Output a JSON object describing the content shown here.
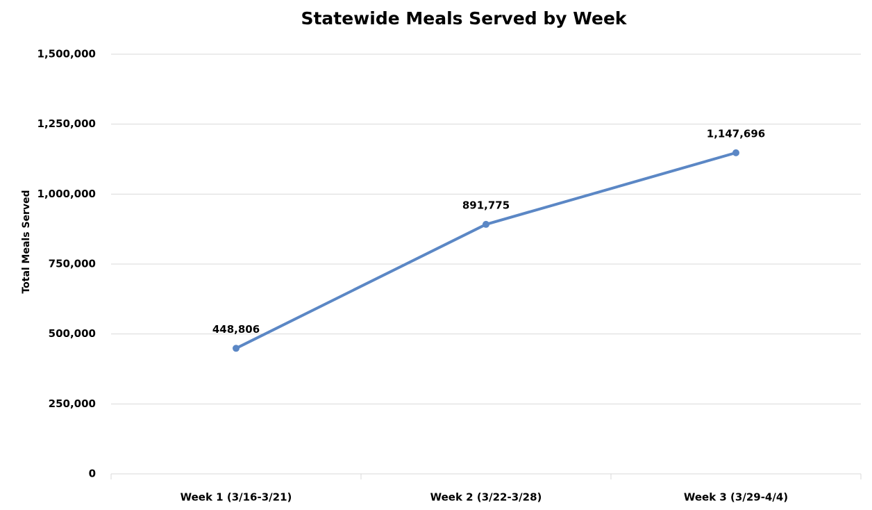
{
  "chart_data": {
    "type": "line",
    "title": "Statewide Meals Served by Week",
    "y_label": "Total Meals Served",
    "categories": [
      "Week 1 (3/16-3/21)",
      "Week 2 (3/22-3/28)",
      "Week 3 (3/29-4/4)"
    ],
    "series": [
      {
        "name": "Total Meals Served",
        "color": "#5b87c5",
        "values": [
          448806,
          891775,
          1147696
        ],
        "value_labels": [
          "448,806",
          "891,775",
          "1,147,696"
        ]
      }
    ],
    "ylim": [
      0,
      1500000
    ],
    "yticks": [
      0,
      {
        "value": 250000,
        "label": "250,000"
      },
      {
        "value": 500000,
        "label": "500,000"
      },
      {
        "value": 750000,
        "label": "750,000"
      },
      {
        "value": 1000000,
        "label": "1,000,000"
      },
      {
        "value": 1250000,
        "label": "1,250,000"
      },
      {
        "value": 1500000,
        "label": "1,500,000"
      }
    ],
    "grid": true
  }
}
